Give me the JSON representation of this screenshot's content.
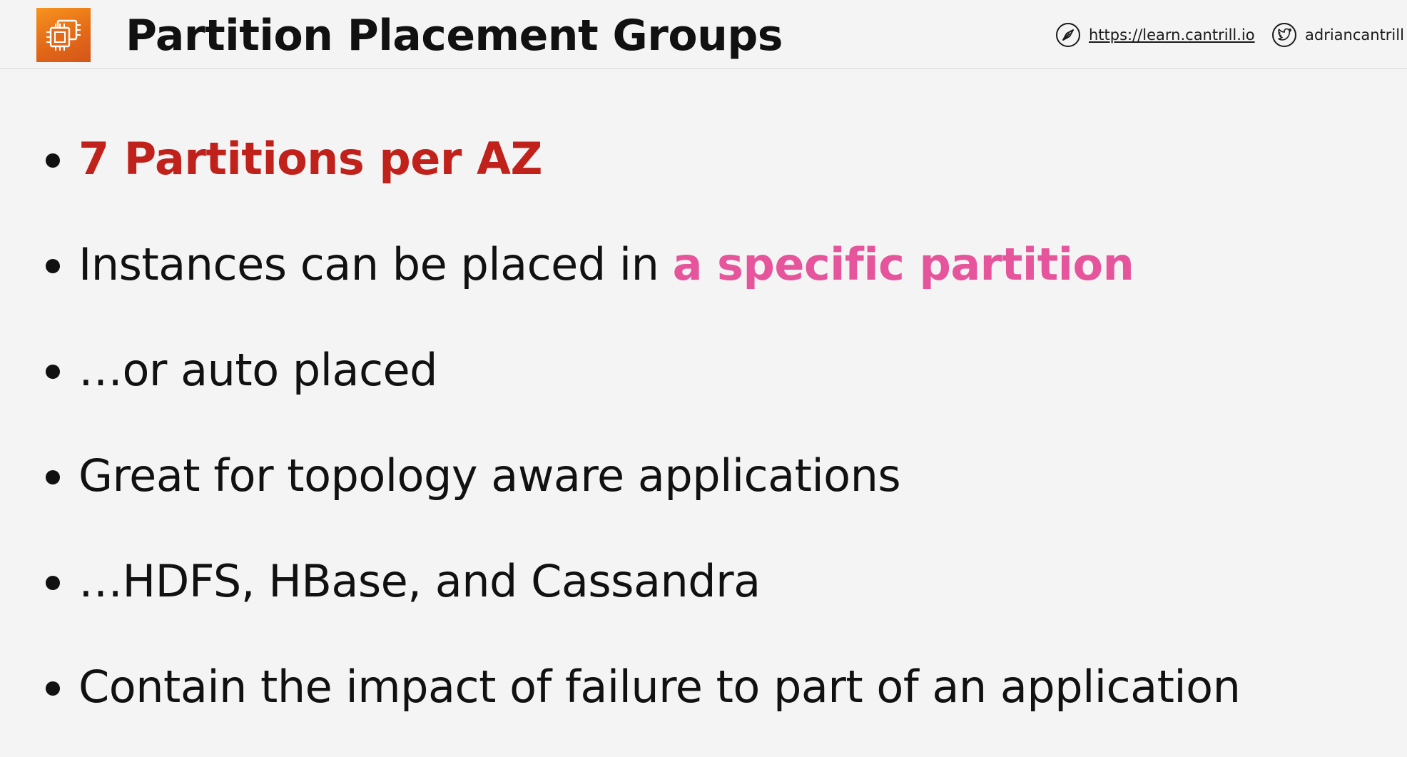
{
  "header": {
    "title": "Partition Placement Groups",
    "logo_icon": "aws-ec2-chip-icon",
    "logo_color": "#e46a17",
    "website_icon": "compass-icon",
    "website_link": "https://learn.cantrill.io",
    "twitter_icon": "twitter-bird-icon",
    "twitter_handle": "adriancantrill"
  },
  "bullets": [
    {
      "text": "7 Partitions per AZ",
      "color": "#c0211b"
    },
    {
      "prefix": "Instances can be placed in ",
      "highlight": "a specific partition",
      "highlight_color": "#e6559c"
    },
    {
      "text": "…or auto placed"
    },
    {
      "text": "Great for topology aware applications"
    },
    {
      "text": "…HDFS, HBase, and Cassandra"
    },
    {
      "text": "Contain the impact of failure to part of an application"
    }
  ]
}
